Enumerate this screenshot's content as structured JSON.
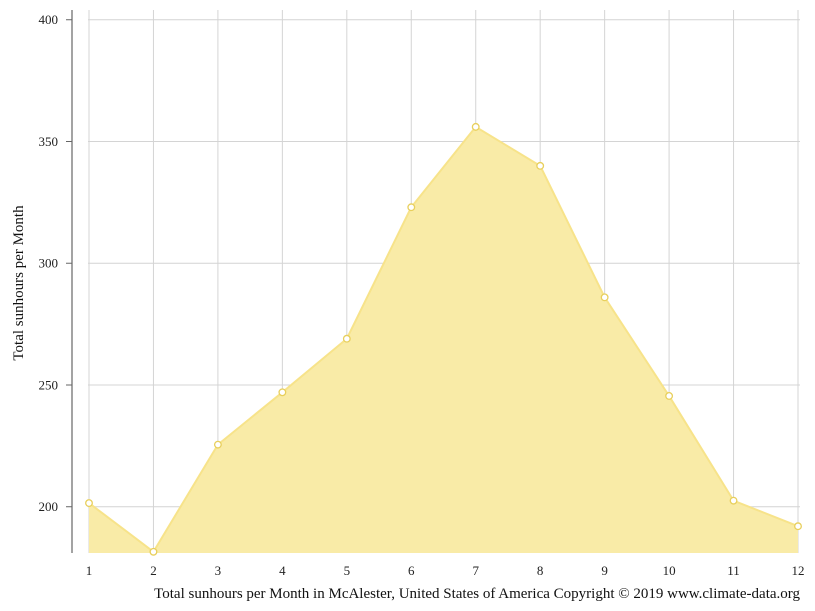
{
  "chart_data": {
    "type": "area",
    "title": "",
    "xlabel": "",
    "ylabel": "Total sunhours per Month",
    "caption": "Total sunhours per Month in McAlester, United States of America Copyright © 2019 www.climate-data.org",
    "x": [
      1,
      2,
      3,
      4,
      5,
      6,
      7,
      8,
      9,
      10,
      11,
      12
    ],
    "x_ticks": [
      "1",
      "2",
      "3",
      "4",
      "5",
      "6",
      "7",
      "8",
      "9",
      "10",
      "11",
      "12"
    ],
    "y_ticks": [
      "200",
      "250",
      "300",
      "350",
      "400"
    ],
    "ylim": [
      181,
      404
    ],
    "grid": true,
    "legend": "none",
    "series": [
      {
        "values": [
          201.5,
          181.5,
          225.5,
          247,
          269,
          323,
          356,
          340,
          286,
          245.5,
          202.5,
          192
        ],
        "fill_color": "#f9eba7",
        "line_color": "#f7e38a",
        "marker_fill": "#ffffff",
        "marker_stroke": "#e8cf5c"
      }
    ]
  }
}
